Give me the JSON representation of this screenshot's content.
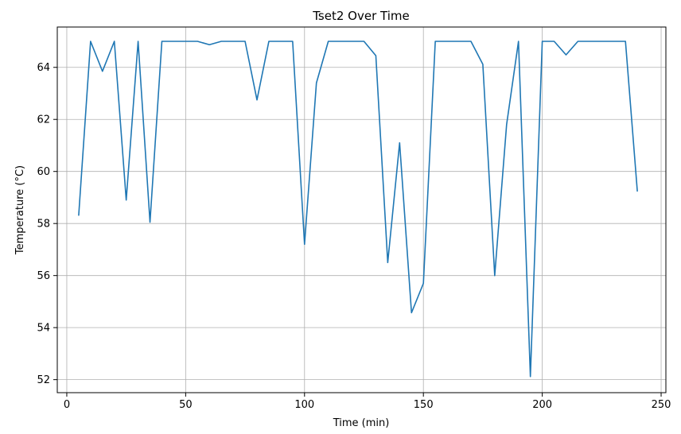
{
  "chart_data": {
    "type": "line",
    "title": "Tset2 Over Time",
    "xlabel": "Time (min)",
    "ylabel": "Temperature (°C)",
    "xlim": [
      -4,
      252
    ],
    "ylim": [
      51.5,
      65.55
    ],
    "xticks": [
      0,
      50,
      100,
      150,
      200,
      250
    ],
    "yticks": [
      52,
      54,
      56,
      58,
      60,
      62,
      64
    ],
    "grid": true,
    "legend": "none",
    "series": [
      {
        "color": "#1f77b4",
        "x": [
          5,
          10,
          15,
          20,
          25,
          30,
          35,
          40,
          45,
          50,
          55,
          60,
          65,
          70,
          75,
          80,
          85,
          90,
          95,
          100,
          105,
          110,
          115,
          120,
          125,
          130,
          135,
          140,
          145,
          150,
          155,
          160,
          165,
          170,
          175,
          180,
          185,
          190,
          195,
          200,
          205,
          210,
          215,
          220,
          225,
          230,
          235,
          240
        ],
        "y": [
          58.3,
          65.0,
          63.85,
          65.0,
          58.9,
          65.0,
          58.05,
          65.0,
          65.0,
          65.0,
          65.0,
          64.87,
          65.0,
          65.0,
          65.0,
          62.75,
          65.0,
          65.0,
          65.0,
          57.2,
          63.4,
          65.0,
          65.0,
          65.0,
          65.0,
          64.45,
          56.5,
          61.1,
          54.57,
          55.7,
          65.0,
          65.0,
          65.0,
          65.0,
          64.12,
          56.0,
          61.8,
          65.0,
          52.12,
          65.0,
          65.0,
          64.48,
          65.0,
          65.0,
          65.0,
          65.0,
          65.0,
          59.23
        ]
      }
    ]
  }
}
